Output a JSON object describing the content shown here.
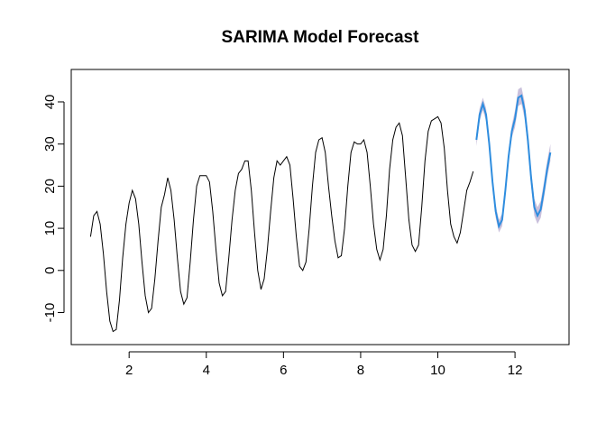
{
  "chart_data": {
    "type": "line",
    "title": "SARIMA Model Forecast",
    "xlim": [
      0.5,
      13.4
    ],
    "ylim": [
      -17.6,
      47.7
    ],
    "xticks": [
      2,
      4,
      6,
      8,
      10,
      12
    ],
    "yticks": [
      -10,
      0,
      10,
      20,
      30,
      40
    ],
    "series": [
      {
        "color": "#000000",
        "x": [
          1,
          1.083,
          1.167,
          1.25,
          1.333,
          1.417,
          1.5,
          1.583,
          1.667,
          1.75,
          1.833,
          1.917,
          2,
          2.083,
          2.167,
          2.25,
          2.333,
          2.417,
          2.5,
          2.583,
          2.667,
          2.75,
          2.833,
          2.917,
          3,
          3.083,
          3.167,
          3.25,
          3.333,
          3.417,
          3.5,
          3.583,
          3.667,
          3.75,
          3.833,
          3.917,
          4,
          4.083,
          4.167,
          4.25,
          4.333,
          4.417,
          4.5,
          4.583,
          4.667,
          4.75,
          4.833,
          4.917,
          5,
          5.083,
          5.167,
          5.25,
          5.333,
          5.417,
          5.5,
          5.583,
          5.667,
          5.75,
          5.833,
          5.917,
          6,
          6.083,
          6.167,
          6.25,
          6.333,
          6.417,
          6.5,
          6.583,
          6.667,
          6.75,
          6.833,
          6.917,
          7,
          7.083,
          7.167,
          7.25,
          7.333,
          7.417,
          7.5,
          7.583,
          7.667,
          7.75,
          7.833,
          7.917,
          8,
          8.083,
          8.167,
          8.25,
          8.333,
          8.417,
          8.5,
          8.583,
          8.667,
          8.75,
          8.833,
          8.917,
          9,
          9.083,
          9.167,
          9.25,
          9.333,
          9.417,
          9.5,
          9.583,
          9.667,
          9.75,
          9.833,
          9.917,
          10,
          10.083,
          10.167,
          10.25,
          10.333,
          10.417,
          10.5,
          10.583,
          10.667,
          10.75,
          10.833,
          10.917
        ],
        "values": [
          8,
          13,
          14,
          11,
          4,
          -5,
          -12,
          -14.5,
          -14,
          -7,
          3,
          11,
          16,
          19,
          17,
          11,
          2,
          -6,
          -10,
          -9,
          -2,
          7,
          15,
          18,
          22,
          19,
          12,
          3,
          -5,
          -8,
          -6.5,
          2,
          12,
          20,
          22.5,
          22.5,
          22.5,
          21,
          14,
          5,
          -3,
          -6,
          -5,
          3,
          12,
          19,
          23,
          24,
          26,
          26,
          19,
          9,
          0,
          -4.5,
          -2,
          5,
          14,
          22,
          26,
          25,
          26,
          27,
          25,
          17,
          8,
          1,
          0,
          2,
          10,
          20,
          28,
          31,
          31.5,
          28,
          20,
          13,
          7,
          3,
          3.5,
          10,
          20,
          28,
          30.5,
          30,
          30,
          31,
          28,
          20,
          11,
          5,
          2.5,
          5,
          13,
          24,
          31,
          34,
          35,
          32,
          22,
          12,
          6,
          4.5,
          6,
          15,
          26,
          33,
          35.5,
          36,
          36.5,
          35,
          29,
          19,
          11,
          8,
          6.5,
          9,
          14,
          19,
          21,
          23.5
        ]
      },
      {
        "color": "#2e8ddf",
        "band_color": "#c9c0dc",
        "x": [
          11,
          11.083,
          11.167,
          11.25,
          11.333,
          11.417,
          11.5,
          11.583,
          11.667,
          11.75,
          11.833,
          11.917,
          12,
          12.083,
          12.167,
          12.25,
          12.333,
          12.417,
          12.5,
          12.583,
          12.667,
          12.75,
          12.833,
          12.917
        ],
        "values": [
          31,
          37,
          39.5,
          37,
          30,
          21,
          14,
          10.5,
          12,
          19,
          27,
          33,
          36,
          41,
          41.5,
          38,
          31,
          22,
          15,
          13,
          14.5,
          19,
          24,
          28
        ],
        "lower": [
          29.5,
          35.5,
          38,
          35.5,
          28.5,
          19.5,
          12.5,
          9,
          10.5,
          17.5,
          25.5,
          31.5,
          34,
          39,
          39.5,
          36,
          29,
          20,
          13,
          11,
          12.5,
          17,
          22,
          26
        ],
        "upper": [
          32.5,
          38.5,
          41,
          38.5,
          31.5,
          22.5,
          15.5,
          12,
          13.5,
          20.5,
          28.5,
          34.5,
          38,
          43,
          43.5,
          40,
          33,
          24,
          17,
          15,
          16.5,
          21,
          26,
          30
        ]
      }
    ]
  }
}
